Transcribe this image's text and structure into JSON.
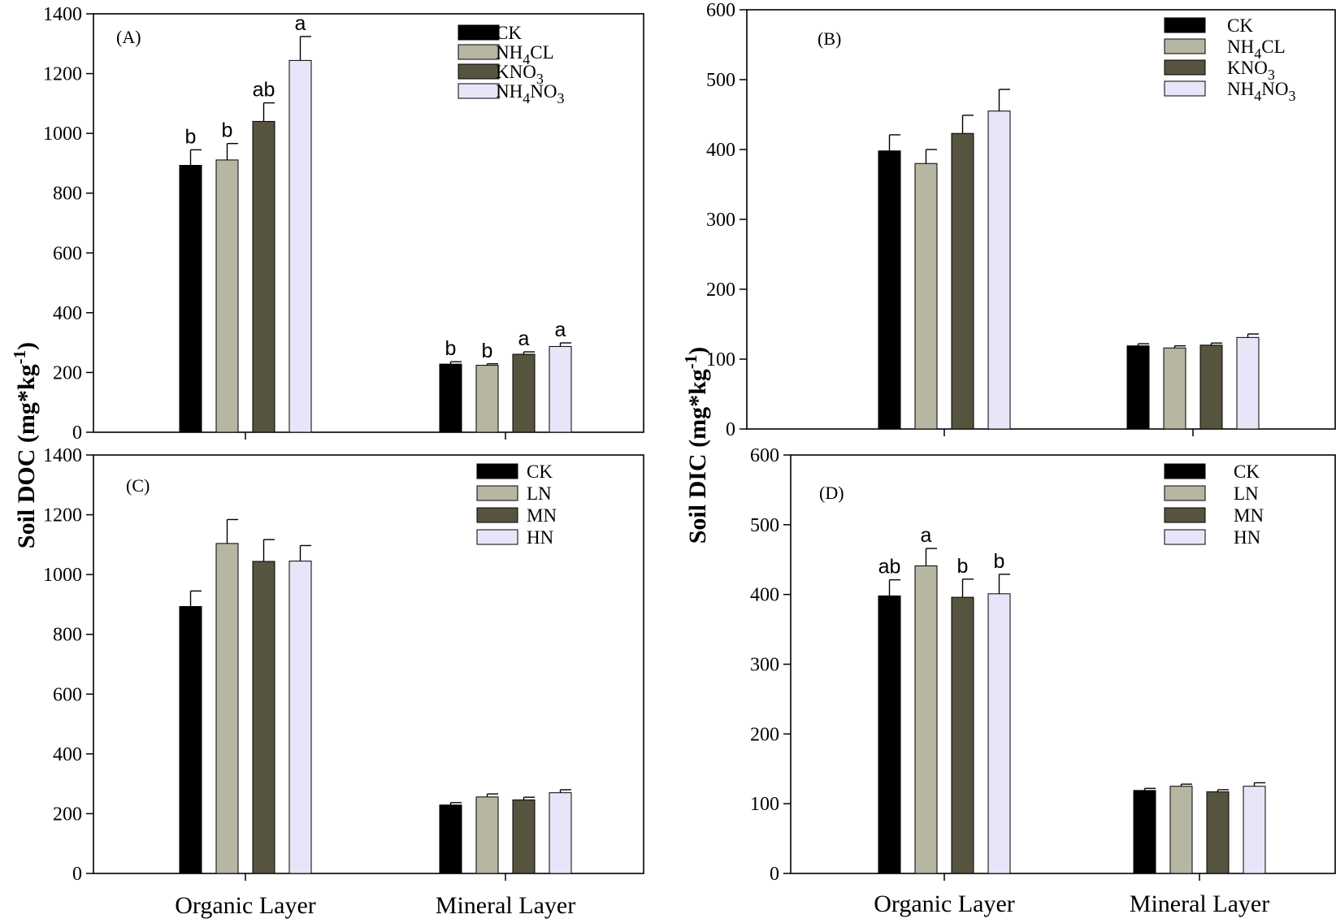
{
  "figure": {
    "ylabel_left": "Soil DOC (mg*kg-1)",
    "ylabel_right": "Soil DIC (mg*kg-1)",
    "ylabel_left_main": "Soil DOC (mg*kg",
    "ylabel_right_main": "Soil DIC (mg*kg",
    "ylabel_sup": "-1",
    "ylabel_close": ")",
    "categories": [
      "Organic Layer",
      "Mineral Layer"
    ]
  },
  "colors": {
    "CK": "#000000",
    "T1": "#b7b6a3",
    "T2": "#56543f",
    "T3": "#e6e6f8"
  },
  "chart_data": [
    {
      "panel": "(A)",
      "type": "bar",
      "categories": [
        "Organic Layer",
        "Mineral Layer"
      ],
      "ylim": [
        0,
        1400
      ],
      "yticks": [
        0,
        200,
        400,
        600,
        800,
        1000,
        1200,
        1400
      ],
      "ylabel": "Soil DOC (mg*kg-1)",
      "series": [
        {
          "name": "CK",
          "legend": [
            "CK",
            ""
          ],
          "values": [
            893,
            228
          ],
          "errors": [
            52,
            8
          ],
          "sig": [
            "b",
            "b"
          ]
        },
        {
          "name": "NH4CL",
          "legend": [
            "NH",
            "4",
            "CL"
          ],
          "values": [
            911,
            224
          ],
          "errors": [
            55,
            5
          ],
          "sig": [
            "b",
            "b"
          ]
        },
        {
          "name": "KNO3",
          "legend": [
            "KNO",
            "3",
            ""
          ],
          "values": [
            1040,
            261
          ],
          "errors": [
            62,
            8
          ],
          "sig": [
            "ab",
            "a"
          ]
        },
        {
          "name": "NH4NO3",
          "legend": [
            "NH",
            "4",
            "NO",
            "3"
          ],
          "values": [
            1244,
            287
          ],
          "errors": [
            80,
            12
          ],
          "sig": [
            "a",
            "a"
          ]
        }
      ]
    },
    {
      "panel": "(B)",
      "type": "bar",
      "categories": [
        "Organic Layer",
        "Mineral Layer"
      ],
      "ylim": [
        0,
        600
      ],
      "yticks": [
        0,
        100,
        200,
        300,
        400,
        500,
        600
      ],
      "ylabel": "Soil DIC (mg*kg-1)",
      "series": [
        {
          "name": "CK",
          "legend": [
            "CK",
            ""
          ],
          "values": [
            398,
            119
          ],
          "errors": [
            23,
            3
          ],
          "sig": [
            "",
            ""
          ]
        },
        {
          "name": "NH4CL",
          "legend": [
            "NH",
            "4",
            "CL"
          ],
          "values": [
            380,
            116
          ],
          "errors": [
            20,
            3
          ],
          "sig": [
            "",
            ""
          ]
        },
        {
          "name": "KNO3",
          "legend": [
            "KNO",
            "3",
            ""
          ],
          "values": [
            423,
            120
          ],
          "errors": [
            26,
            3
          ],
          "sig": [
            "",
            ""
          ]
        },
        {
          "name": "NH4NO3",
          "legend": [
            "NH",
            "4",
            "NO",
            "3"
          ],
          "values": [
            455,
            131
          ],
          "errors": [
            31,
            5
          ],
          "sig": [
            "",
            ""
          ]
        }
      ]
    },
    {
      "panel": "(C)",
      "type": "bar",
      "categories": [
        "Organic Layer",
        "Mineral Layer"
      ],
      "ylim": [
        0,
        1400
      ],
      "yticks": [
        0,
        200,
        400,
        600,
        800,
        1000,
        1200,
        1400
      ],
      "ylabel": "Soil DOC (mg*kg-1)",
      "series": [
        {
          "name": "CK",
          "legend": [
            "CK",
            ""
          ],
          "values": [
            893,
            229
          ],
          "errors": [
            52,
            8
          ],
          "sig": [
            "",
            ""
          ]
        },
        {
          "name": "LN",
          "legend": [
            "LN",
            ""
          ],
          "values": [
            1104,
            256
          ],
          "errors": [
            80,
            10
          ],
          "sig": [
            "",
            ""
          ]
        },
        {
          "name": "MN",
          "legend": [
            "MN",
            ""
          ],
          "values": [
            1044,
            246
          ],
          "errors": [
            73,
            9
          ],
          "sig": [
            "",
            ""
          ]
        },
        {
          "name": "HN",
          "legend": [
            "HN",
            ""
          ],
          "values": [
            1045,
            270
          ],
          "errors": [
            52,
            10
          ],
          "sig": [
            "",
            ""
          ]
        }
      ]
    },
    {
      "panel": "(D)",
      "type": "bar",
      "categories": [
        "Organic Layer",
        "Mineral Layer"
      ],
      "ylim": [
        0,
        600
      ],
      "yticks": [
        0,
        100,
        200,
        300,
        400,
        500,
        600
      ],
      "ylabel": "Soil DIC (mg*kg-1)",
      "series": [
        {
          "name": "CK",
          "legend": [
            "CK",
            ""
          ],
          "values": [
            398,
            119
          ],
          "errors": [
            23,
            3
          ],
          "sig": [
            "ab",
            ""
          ]
        },
        {
          "name": "LN",
          "legend": [
            "LN",
            ""
          ],
          "values": [
            441,
            125
          ],
          "errors": [
            25,
            3
          ],
          "sig": [
            "a",
            ""
          ]
        },
        {
          "name": "MN",
          "legend": [
            "MN",
            ""
          ],
          "values": [
            396,
            117
          ],
          "errors": [
            26,
            3
          ],
          "sig": [
            "b",
            ""
          ]
        },
        {
          "name": "HN",
          "legend": [
            "HN",
            ""
          ],
          "values": [
            401,
            125
          ],
          "errors": [
            28,
            5
          ],
          "sig": [
            "b",
            ""
          ]
        }
      ]
    }
  ]
}
